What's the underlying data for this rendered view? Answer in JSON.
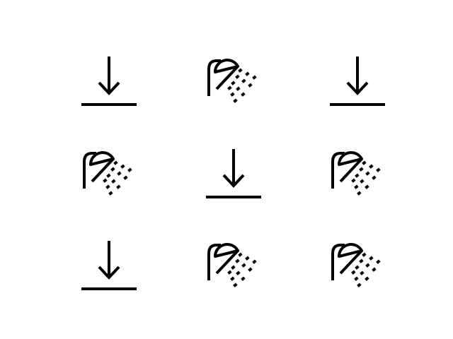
{
  "grid": {
    "rows": [
      [
        "download-icon",
        "shower-icon",
        "download-icon"
      ],
      [
        "shower-icon",
        "download-icon",
        "shower-icon"
      ],
      [
        "download-icon",
        "shower-icon",
        "shower-icon"
      ]
    ]
  },
  "colors": {
    "background": "#ffffff",
    "icon_stroke": "#000000"
  }
}
